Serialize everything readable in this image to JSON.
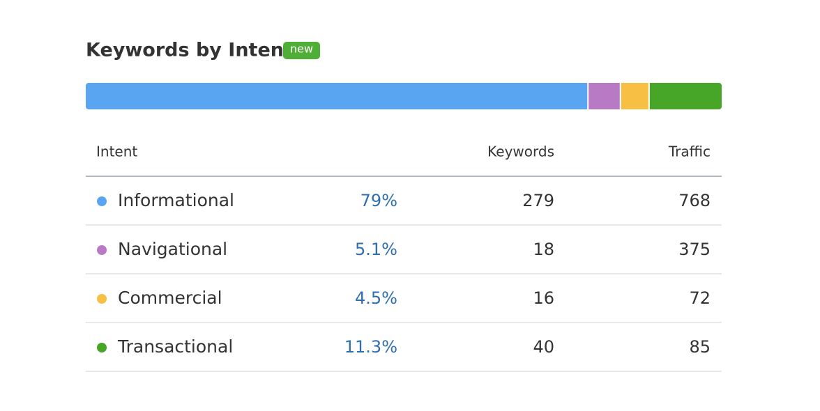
{
  "title": "Keywords by Intent",
  "badge": "new",
  "columns": [
    "Intent",
    "Keywords",
    "Traffic"
  ],
  "rows": [
    {
      "intent": "Informational",
      "color": "#59a5f1",
      "share": {
        "value": 79,
        "label": "79%"
      },
      "keywords": 279,
      "traffic": 768
    },
    {
      "intent": "Navigational",
      "color": "#b87ac4",
      "share": {
        "value": 5.1,
        "label": "5.1%"
      },
      "keywords": 18,
      "traffic": 375
    },
    {
      "intent": "Commercial",
      "color": "#f7c044",
      "share": {
        "value": 4.5,
        "label": "4.5%"
      },
      "keywords": 16,
      "traffic": 72
    },
    {
      "intent": "Transactional",
      "color": "#47a627",
      "share": {
        "value": 11.3,
        "label": "11.3%"
      },
      "keywords": 40,
      "traffic": 85
    }
  ]
}
